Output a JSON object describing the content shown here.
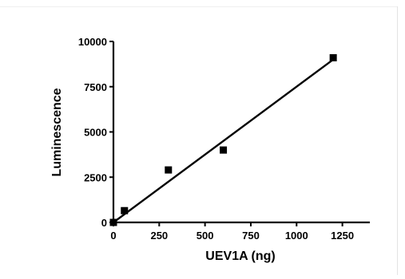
{
  "chart_data": {
    "type": "scatter",
    "title": "",
    "xlabel": "UEV1A (ng)",
    "ylabel": "Luminescence",
    "xlim": [
      0,
      1400
    ],
    "ylim": [
      0,
      10000
    ],
    "xticks": [
      0,
      250,
      500,
      750,
      1000,
      1250
    ],
    "yticks": [
      0,
      2500,
      5000,
      7500,
      10000
    ],
    "grid": false,
    "series": [
      {
        "marker": "square",
        "color": "#000000",
        "points": [
          {
            "x": 0,
            "y": 0
          },
          {
            "x": 60,
            "y": 650
          },
          {
            "x": 300,
            "y": 2900
          },
          {
            "x": 600,
            "y": 4000
          },
          {
            "x": 1200,
            "y": 9100
          }
        ]
      }
    ],
    "fit_line": {
      "type": "linear",
      "x": [
        0,
        1200
      ],
      "y": [
        0,
        9000
      ]
    }
  }
}
